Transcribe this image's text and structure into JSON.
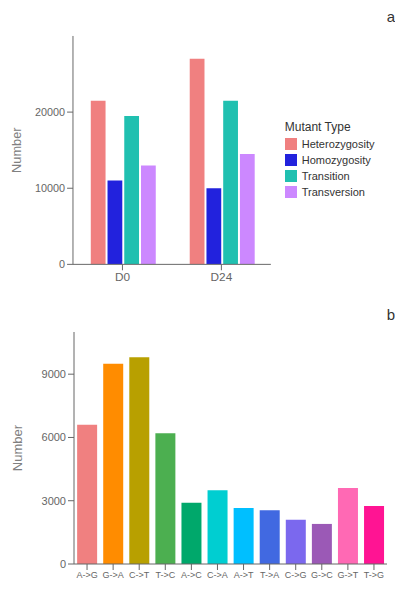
{
  "chart_data": [
    {
      "type": "bar",
      "title": "a",
      "categories": [
        "D0",
        "D24"
      ],
      "series": [
        {
          "name": "Heterozygosity",
          "color": "#F08080",
          "values": [
            21500,
            27000
          ]
        },
        {
          "name": "Homozygosity",
          "color": "#2222DD",
          "values": [
            11000,
            10000
          ]
        },
        {
          "name": "Transition",
          "color": "#20C0B0",
          "values": [
            19500,
            21500
          ]
        },
        {
          "name": "Transversion",
          "color": "#CC88FF",
          "values": [
            13000,
            14500
          ]
        }
      ],
      "ylabel": "Number",
      "ylim": [
        0,
        30000
      ],
      "yticks": [
        0,
        10000,
        20000
      ],
      "legend": "right",
      "legend_title": "Mutant Type",
      "grid": false
    },
    {
      "type": "bar",
      "title": "b",
      "categories": [
        "A->G",
        "G->A",
        "C->T",
        "T->C",
        "A->C",
        "C->A",
        "A->T",
        "T->A",
        "C->G",
        "G->C",
        "G->T",
        "T->G"
      ],
      "values": [
        6600,
        9500,
        9800,
        6200,
        2900,
        3500,
        2650,
        2550,
        2100,
        1900,
        3600,
        2750
      ],
      "colors": [
        "#F08080",
        "#FF8C00",
        "#B8A000",
        "#4CAF50",
        "#00A86B",
        "#00CED1",
        "#00BFFF",
        "#4169E1",
        "#7B68EE",
        "#9B59B6",
        "#FF69B4",
        "#FF1493"
      ],
      "ylabel": "Number",
      "ylim": [
        0,
        11000
      ],
      "yticks": [
        0,
        3000,
        6000,
        9000
      ],
      "grid": false
    }
  ]
}
